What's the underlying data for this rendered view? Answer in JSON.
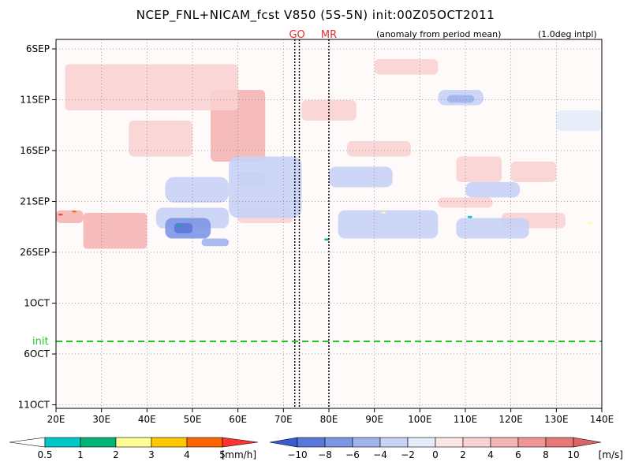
{
  "chart_data": {
    "type": "heatmap",
    "title": "NCEP_FNL+NICAM_fcst V850 (5S-5N) init:00Z05OCT2011",
    "subtitle_left": "(anomaly from period mean)",
    "subtitle_right": "(1.0deg intpl)",
    "x": {
      "ticks": [
        "20E",
        "30E",
        "40E",
        "50E",
        "60E",
        "70E",
        "80E",
        "90E",
        "100E",
        "110E",
        "120E",
        "130E",
        "140E"
      ],
      "range": [
        20,
        140
      ]
    },
    "y": {
      "ticks": [
        "6SEP",
        "11SEP",
        "16SEP",
        "21SEP",
        "26SEP",
        "1OCT",
        "6OCT",
        "11OCT"
      ],
      "range_days": [
        "04SEP2011",
        "12OCT2011"
      ]
    },
    "init_label": "init",
    "init_date": "05OCT2011",
    "markers": [
      {
        "label": "GO",
        "lon": [
          72.5,
          73.5
        ]
      },
      {
        "label": "MR",
        "lon": [
          80.0
        ]
      }
    ],
    "grid": true,
    "colorbar_rain": {
      "unit": "[mm/h]",
      "labels": [
        "0.5",
        "1",
        "2",
        "3",
        "4",
        "5"
      ],
      "colors": [
        "#ffffff",
        "#00c8c8",
        "#00b478",
        "#ffff96",
        "#ffc800",
        "#ff6400",
        "#ff3232"
      ]
    },
    "colorbar_wind": {
      "unit": "[m/s]",
      "labels": [
        "−10",
        "−8",
        "−6",
        "−4",
        "−2",
        "0",
        "2",
        "4",
        "6",
        "8",
        "10"
      ],
      "colors": [
        "#3c5ad2",
        "#5a78dc",
        "#7d96e6",
        "#a0b4ee",
        "#c8d2f5",
        "#e6ebfa",
        "#fae6e6",
        "#fad2d2",
        "#f5b4b4",
        "#f09696",
        "#e67878",
        "#dc6464"
      ]
    },
    "regions": [
      {
        "kind": "wind",
        "value": 2.5,
        "lon": [
          54,
          66
        ],
        "date": [
          8,
          22
        ],
        "rx": 1
      },
      {
        "kind": "wind",
        "value": 2,
        "lon": [
          22,
          60
        ],
        "date": [
          3,
          12
        ],
        "rx": 0.8
      },
      {
        "kind": "wind",
        "value": 2,
        "lon": [
          36,
          50
        ],
        "date": [
          14,
          21
        ],
        "rx": 1
      },
      {
        "kind": "wind",
        "value": 2,
        "lon": [
          108,
          118
        ],
        "date": [
          21,
          26
        ],
        "rx": 1
      },
      {
        "kind": "wind",
        "value": 2,
        "lon": [
          120,
          130
        ],
        "date": [
          22,
          26
        ],
        "rx": 1
      },
      {
        "kind": "wind",
        "value": 2,
        "lon": [
          60,
          72
        ],
        "date": [
          31,
          34
        ],
        "rx": 1
      },
      {
        "kind": "wind",
        "value": 1.5,
        "lon": [
          74,
          86
        ],
        "date": [
          10,
          14
        ],
        "rx": 1
      },
      {
        "kind": "wind",
        "value": 1.5,
        "lon": [
          84,
          98
        ],
        "date": [
          18,
          21
        ],
        "rx": 1
      },
      {
        "kind": "wind",
        "value": 1.5,
        "lon": [
          90,
          104
        ],
        "date": [
          2,
          5
        ],
        "rx": 1
      },
      {
        "kind": "wind",
        "value": 1.5,
        "lon": [
          104,
          116
        ],
        "date": [
          29,
          31
        ],
        "rx": 1
      },
      {
        "kind": "wind",
        "value": 3,
        "lon": [
          26,
          40
        ],
        "date": [
          32,
          39
        ],
        "rx": 0.8
      },
      {
        "kind": "wind",
        "value": 2.5,
        "lon": [
          20,
          26
        ],
        "date": [
          31.5,
          34
        ],
        "rx": 1
      },
      {
        "kind": "wind",
        "value": 2,
        "lon": [
          118,
          132
        ],
        "date": [
          32,
          35
        ],
        "rx": 1
      },
      {
        "kind": "wind",
        "value": -2,
        "lon": [
          58,
          74
        ],
        "date": [
          21,
          33
        ],
        "rx": 2
      },
      {
        "kind": "wind",
        "value": -3,
        "lon": [
          60,
          66
        ],
        "date": [
          24,
          27
        ],
        "rx": 1
      },
      {
        "kind": "wind",
        "value": -2,
        "lon": [
          44,
          58
        ],
        "date": [
          25,
          30
        ],
        "rx": 2
      },
      {
        "kind": "wind",
        "value": -3.5,
        "lon": [
          42,
          58
        ],
        "date": [
          31,
          35
        ],
        "rx": 1.5
      },
      {
        "kind": "wind",
        "value": -6,
        "lon": [
          44,
          54
        ],
        "date": [
          33,
          37
        ],
        "rx": 1.5
      },
      {
        "kind": "wind",
        "value": -9,
        "lon": [
          46,
          50
        ],
        "date": [
          34,
          36
        ],
        "rx": 0.8
      },
      {
        "kind": "wind",
        "value": -4,
        "lon": [
          52,
          58
        ],
        "date": [
          37,
          38.5
        ],
        "rx": 0.8
      },
      {
        "kind": "wind",
        "value": -2,
        "lon": [
          104,
          114
        ],
        "date": [
          8,
          11
        ],
        "rx": 1.5
      },
      {
        "kind": "wind",
        "value": -4,
        "lon": [
          106,
          112
        ],
        "date": [
          9,
          10.5
        ],
        "rx": 1
      },
      {
        "kind": "wind",
        "value": -2,
        "lon": [
          110,
          122
        ],
        "date": [
          26,
          29
        ],
        "rx": 1.5
      },
      {
        "kind": "wind",
        "value": -2,
        "lon": [
          80,
          94
        ],
        "date": [
          23,
          27
        ],
        "rx": 1.5
      },
      {
        "kind": "wind",
        "value": -1.5,
        "lon": [
          130,
          140
        ],
        "date": [
          12,
          16
        ],
        "rx": 1
      },
      {
        "kind": "wind",
        "value": -2,
        "lon": [
          82,
          104
        ],
        "date": [
          31.5,
          37
        ],
        "rx": 1.5
      },
      {
        "kind": "wind",
        "value": -2,
        "lon": [
          108,
          124
        ],
        "date": [
          33,
          37
        ],
        "rx": 1.5
      },
      {
        "kind": "rain",
        "value": 1,
        "lon": [
          46.5,
          47.5
        ],
        "date": [
          34.4,
          34.7
        ],
        "rx": 0.2
      },
      {
        "kind": "rain",
        "value": 2,
        "lon": [
          91.5,
          92.5
        ],
        "date": [
          31.8,
          32.1
        ],
        "rx": 0.2
      },
      {
        "kind": "rain",
        "value": 0.5,
        "lon": [
          110.5,
          111.5
        ],
        "date": [
          32.6,
          33
        ],
        "rx": 0.2
      },
      {
        "kind": "rain",
        "value": 1,
        "lon": [
          79,
          80
        ],
        "date": [
          37,
          37.4
        ],
        "rx": 0.2
      },
      {
        "kind": "rain",
        "value": 4,
        "lon": [
          23.5,
          24.5
        ],
        "date": [
          31.6,
          31.9
        ],
        "rx": 0.2
      },
      {
        "kind": "rain",
        "value": 5,
        "lon": [
          20.5,
          21.5
        ],
        "date": [
          32.2,
          32.5
        ],
        "rx": 0.2
      },
      {
        "kind": "rain",
        "value": 2,
        "lon": [
          137,
          138
        ],
        "date": [
          33.8,
          34.2
        ],
        "rx": 0.2
      }
    ]
  }
}
